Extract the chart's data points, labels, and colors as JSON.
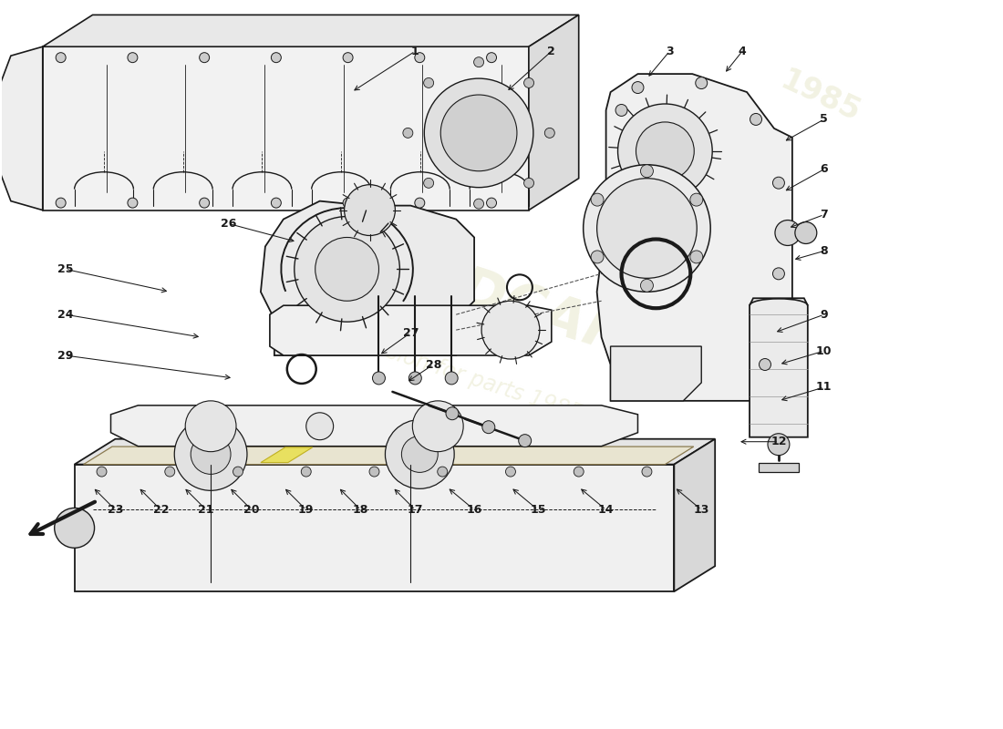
{
  "background_color": "#ffffff",
  "line_color": "#1a1a1a",
  "light_gray": "#f0f0f0",
  "mid_gray": "#e0e0e0",
  "dark_gray": "#c8c8c8",
  "watermark1": "2-USEDCARS",
  "watermark2": "a passion for parts 1985",
  "wm_color": "#e8e8cc",
  "wm_alpha": 0.55,
  "figsize": [
    11.0,
    8.0
  ],
  "dpi": 100,
  "labels": [
    [
      1,
      4.55,
      7.45,
      3.85,
      7.0
    ],
    [
      2,
      6.05,
      7.45,
      5.55,
      7.0
    ],
    [
      3,
      7.35,
      7.45,
      7.1,
      7.15
    ],
    [
      4,
      8.15,
      7.45,
      7.95,
      7.2
    ],
    [
      5,
      9.05,
      6.7,
      8.6,
      6.45
    ],
    [
      6,
      9.05,
      6.15,
      8.6,
      5.9
    ],
    [
      7,
      9.05,
      5.65,
      8.65,
      5.5
    ],
    [
      8,
      9.05,
      5.25,
      8.7,
      5.15
    ],
    [
      9,
      9.05,
      4.55,
      8.5,
      4.35
    ],
    [
      10,
      9.05,
      4.15,
      8.55,
      4.0
    ],
    [
      11,
      9.05,
      3.75,
      8.55,
      3.6
    ],
    [
      12,
      8.55,
      3.15,
      8.1,
      3.15
    ],
    [
      13,
      7.7,
      2.4,
      7.4,
      2.65
    ],
    [
      14,
      6.65,
      2.4,
      6.35,
      2.65
    ],
    [
      15,
      5.9,
      2.4,
      5.6,
      2.65
    ],
    [
      16,
      5.2,
      2.4,
      4.9,
      2.65
    ],
    [
      17,
      4.55,
      2.4,
      4.3,
      2.65
    ],
    [
      18,
      3.95,
      2.4,
      3.7,
      2.65
    ],
    [
      19,
      3.35,
      2.4,
      3.1,
      2.65
    ],
    [
      20,
      2.75,
      2.4,
      2.5,
      2.65
    ],
    [
      21,
      2.25,
      2.4,
      2.0,
      2.65
    ],
    [
      22,
      1.75,
      2.4,
      1.5,
      2.65
    ],
    [
      23,
      1.25,
      2.4,
      1.0,
      2.65
    ],
    [
      24,
      0.7,
      4.55,
      2.2,
      4.3
    ],
    [
      25,
      0.7,
      5.05,
      1.85,
      4.8
    ],
    [
      26,
      2.5,
      5.55,
      3.25,
      5.35
    ],
    [
      27,
      4.5,
      4.35,
      4.15,
      4.1
    ],
    [
      28,
      4.75,
      4.0,
      4.45,
      3.8
    ],
    [
      29,
      0.7,
      4.1,
      2.55,
      3.85
    ]
  ]
}
